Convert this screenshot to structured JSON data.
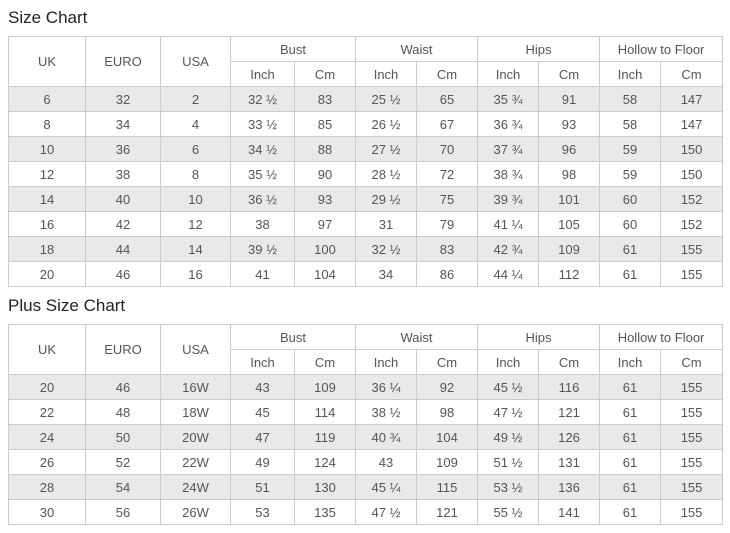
{
  "colors": {
    "stripe": "#e9e9e9",
    "border": "#cccccc",
    "text": "#555555",
    "title": "#222222"
  },
  "column_headers": {
    "simple": [
      "UK",
      "EURO",
      "USA"
    ],
    "groups": [
      "Bust",
      "Waist",
      "Hips",
      "Hollow to Floor"
    ],
    "subheaders": [
      "Inch",
      "Cm"
    ]
  },
  "chart_data": [
    {
      "type": "table",
      "title": "Size Chart",
      "columns": [
        "UK",
        "EURO",
        "USA",
        "Bust Inch",
        "Bust Cm",
        "Waist Inch",
        "Waist Cm",
        "Hips Inch",
        "Hips Cm",
        "Hollow to Floor Inch",
        "Hollow to Floor Cm"
      ],
      "rows": [
        [
          "6",
          "32",
          "2",
          "32 ½",
          "83",
          "25 ½",
          "65",
          "35 ¾",
          "91",
          "58",
          "147"
        ],
        [
          "8",
          "34",
          "4",
          "33 ½",
          "85",
          "26 ½",
          "67",
          "36 ¾",
          "93",
          "58",
          "147"
        ],
        [
          "10",
          "36",
          "6",
          "34 ½",
          "88",
          "27 ½",
          "70",
          "37 ¾",
          "96",
          "59",
          "150"
        ],
        [
          "12",
          "38",
          "8",
          "35 ½",
          "90",
          "28 ½",
          "72",
          "38 ¾",
          "98",
          "59",
          "150"
        ],
        [
          "14",
          "40",
          "10",
          "36 ½",
          "93",
          "29 ½",
          "75",
          "39 ¾",
          "101",
          "60",
          "152"
        ],
        [
          "16",
          "42",
          "12",
          "38",
          "97",
          "31",
          "79",
          "41 ¼",
          "105",
          "60",
          "152"
        ],
        [
          "18",
          "44",
          "14",
          "39 ½",
          "100",
          "32 ½",
          "83",
          "42 ¾",
          "109",
          "61",
          "155"
        ],
        [
          "20",
          "46",
          "16",
          "41",
          "104",
          "34",
          "86",
          "44 ¼",
          "112",
          "61",
          "155"
        ]
      ]
    },
    {
      "type": "table",
      "title": "Plus Size Chart",
      "columns": [
        "UK",
        "EURO",
        "USA",
        "Bust Inch",
        "Bust Cm",
        "Waist Inch",
        "Waist Cm",
        "Hips Inch",
        "Hips Cm",
        "Hollow to Floor Inch",
        "Hollow to Floor Cm"
      ],
      "rows": [
        [
          "20",
          "46",
          "16W",
          "43",
          "109",
          "36 ¼",
          "92",
          "45 ½",
          "116",
          "61",
          "155"
        ],
        [
          "22",
          "48",
          "18W",
          "45",
          "114",
          "38 ½",
          "98",
          "47 ½",
          "121",
          "61",
          "155"
        ],
        [
          "24",
          "50",
          "20W",
          "47",
          "119",
          "40 ¾",
          "104",
          "49 ½",
          "126",
          "61",
          "155"
        ],
        [
          "26",
          "52",
          "22W",
          "49",
          "124",
          "43",
          "109",
          "51 ½",
          "131",
          "61",
          "155"
        ],
        [
          "28",
          "54",
          "24W",
          "51",
          "130",
          "45 ¼",
          "115",
          "53 ½",
          "136",
          "61",
          "155"
        ],
        [
          "30",
          "56",
          "26W",
          "53",
          "135",
          "47 ½",
          "121",
          "55 ½",
          "141",
          "61",
          "155"
        ]
      ]
    }
  ]
}
